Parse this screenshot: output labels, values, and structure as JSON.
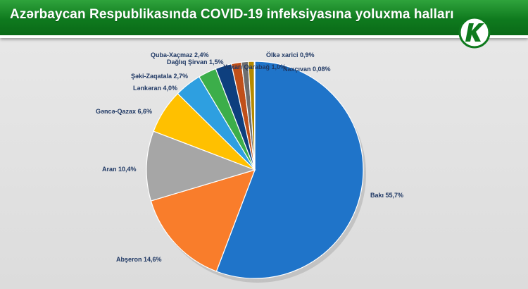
{
  "header": {
    "title": "Azərbaycan Respublikasında COVID-19 infeksiyasına yoluxma halları",
    "logo_icon": "kanal-logo-icon"
  },
  "colors": {
    "header_green": "#0f7a1e",
    "label_text": "#1f3864"
  },
  "chart_data": {
    "type": "pie",
    "title": "Azərbaycan Respublikasında COVID-19 infeksiyasına yoluxma halları",
    "start": "top",
    "direction": "clockwise",
    "slices": [
      {
        "name": "Bakı",
        "value": 55.7,
        "label": "Bakı  55,7%",
        "color": "#1f74c9"
      },
      {
        "name": "Abşeron",
        "value": 14.6,
        "label": "Abşeron 14,6%",
        "color": "#f97d2b"
      },
      {
        "name": "Aran",
        "value": 10.4,
        "label": "Aran 10,4%",
        "color": "#a6a6a6"
      },
      {
        "name": "Gəncə-Qazax",
        "value": 6.6,
        "label": "Gəncə-Qazax 6,6%",
        "color": "#ffc000"
      },
      {
        "name": "Lənkəran",
        "value": 4.0,
        "label": "Lənkəran 4,0%",
        "color": "#2e9fe0"
      },
      {
        "name": "Şəki-Zaqatala",
        "value": 2.7,
        "label": "Şəki-Zaqatala 2,7%",
        "color": "#3cae4a"
      },
      {
        "name": "Quba-Xaçmaz",
        "value": 2.4,
        "label": "Quba-Xaçmaz 2,4%",
        "color": "#0e3f7e"
      },
      {
        "name": "Dağlıq Şirvan",
        "value": 1.5,
        "label": "Dağlıq Şirvan 1,5%",
        "color": "#c0501a"
      },
      {
        "name": "Yuxarı Qarabağ",
        "value": 1.0,
        "label": "Yuxarı Qarabağ 1,0%",
        "color": "#6e6e6e"
      },
      {
        "name": "Ölkə xarici",
        "value": 0.9,
        "label": "Ölkə xarici 0,9%",
        "color": "#b58a00"
      },
      {
        "name": "Naxçıvan",
        "value": 0.08,
        "label": "Naxçıvan 0,08%",
        "color": "#1a5aa0"
      }
    ]
  }
}
